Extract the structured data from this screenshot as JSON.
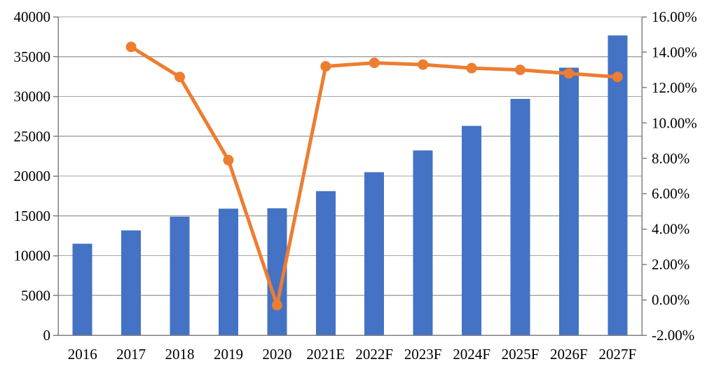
{
  "chart_data": {
    "type": "bar",
    "subtype": "combo-bar-line",
    "title": "",
    "xlabel": "",
    "ylabel_left": "",
    "ylabel_right": "",
    "legend_position": "none",
    "grid": true,
    "background_color": "#FFFFFF",
    "gridline_color": "#A6A6A6",
    "axis_line_color": "#808080",
    "text_color": "#000000",
    "categories": [
      "2016",
      "2017",
      "2018",
      "2019",
      "2020",
      "2021E",
      "2022F",
      "2023F",
      "2024F",
      "2025F",
      "2026F",
      "2027F"
    ],
    "series": [
      {
        "name": "value-bars",
        "type": "bar",
        "axis": "left",
        "color": "#4472C4",
        "values": [
          11500,
          13150,
          14900,
          15900,
          15950,
          18100,
          20500,
          23200,
          26300,
          29700,
          33600,
          37650
        ]
      },
      {
        "name": "growth-rate-line",
        "type": "line",
        "axis": "right",
        "color": "#ED7D31",
        "marker": "circle",
        "values": [
          null,
          14.3,
          12.6,
          7.9,
          -0.3,
          13.2,
          13.4,
          13.3,
          13.1,
          13.0,
          12.8,
          12.6
        ]
      }
    ],
    "left_axis": {
      "min": 0,
      "max": 40000,
      "step": 5000,
      "ticks": [
        0,
        5000,
        10000,
        15000,
        20000,
        25000,
        30000,
        35000,
        40000
      ],
      "tick_labels": [
        "0",
        "5000",
        "10000",
        "15000",
        "20000",
        "25000",
        "30000",
        "35000",
        "40000"
      ]
    },
    "right_axis": {
      "min": -2,
      "max": 16,
      "step": 2,
      "ticks": [
        -2,
        0,
        2,
        4,
        6,
        8,
        10,
        12,
        14,
        16
      ],
      "tick_labels": [
        "-2.00%",
        "0.00%",
        "2.00%",
        "4.00%",
        "6.00%",
        "8.00%",
        "10.00%",
        "12.00%",
        "14.00%",
        "16.00%"
      ]
    }
  }
}
